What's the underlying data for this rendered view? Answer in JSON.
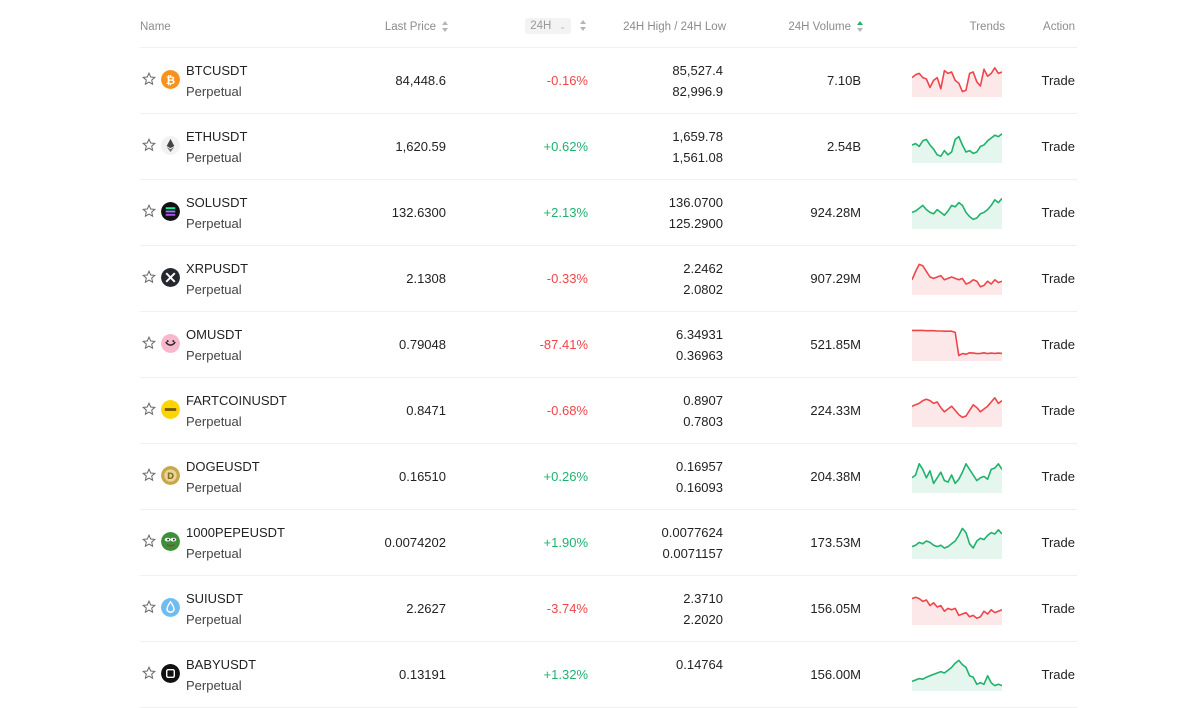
{
  "header": {
    "name": "Name",
    "last_price": "Last Price",
    "change": "24H",
    "high_low": "24H High / 24H Low",
    "volume": "24H Volume",
    "trends": "Trends",
    "action": "Action"
  },
  "colors": {
    "up": "#20b26c",
    "down": "#ef454a"
  },
  "rows": [
    {
      "symbol": "BTCUSDT",
      "type": "Perpetual",
      "price": "84,448.6",
      "change": "-0.16%",
      "direction": "down",
      "high": "85,527.4",
      "low": "82,996.9",
      "volume": "7.10B",
      "action": "Trade",
      "icon": "btc-icon",
      "trend": [
        0.45,
        0.35,
        0.3,
        0.45,
        0.5,
        0.8,
        0.55,
        0.45,
        0.85,
        0.2,
        0.3,
        0.25,
        0.55,
        0.65,
        0.95,
        0.9,
        0.3,
        0.25,
        0.6,
        0.75,
        0.15,
        0.4,
        0.3,
        0.1,
        0.3,
        0.25
      ]
    },
    {
      "symbol": "ETHUSDT",
      "type": "Perpetual",
      "price": "1,620.59",
      "change": "+0.62%",
      "direction": "up",
      "high": "1,659.78",
      "low": "1,561.08",
      "volume": "2.54B",
      "action": "Trade",
      "icon": "eth-icon",
      "trend": [
        0.5,
        0.45,
        0.55,
        0.35,
        0.3,
        0.5,
        0.65,
        0.85,
        0.9,
        0.7,
        0.85,
        0.75,
        0.3,
        0.2,
        0.5,
        0.75,
        0.7,
        0.8,
        0.75,
        0.55,
        0.5,
        0.35,
        0.25,
        0.15,
        0.2,
        0.1
      ]
    },
    {
      "symbol": "SOLUSDT",
      "type": "Perpetual",
      "price": "132.6300",
      "change": "+2.13%",
      "direction": "up",
      "high": "136.0700",
      "low": "125.2900",
      "volume": "924.28M",
      "action": "Trade",
      "icon": "sol-icon",
      "trend": [
        0.55,
        0.5,
        0.4,
        0.3,
        0.45,
        0.55,
        0.6,
        0.45,
        0.55,
        0.65,
        0.5,
        0.3,
        0.35,
        0.2,
        0.3,
        0.55,
        0.7,
        0.8,
        0.75,
        0.6,
        0.55,
        0.45,
        0.3,
        0.1,
        0.2,
        0.05
      ]
    },
    {
      "symbol": "XRPUSDT",
      "type": "Perpetual",
      "price": "2.1308",
      "change": "-0.33%",
      "direction": "down",
      "high": "2.2462",
      "low": "2.0802",
      "volume": "907.29M",
      "action": "Trade",
      "icon": "xrp-icon",
      "trend": [
        0.6,
        0.3,
        0.05,
        0.1,
        0.3,
        0.5,
        0.55,
        0.5,
        0.45,
        0.6,
        0.55,
        0.5,
        0.55,
        0.6,
        0.55,
        0.75,
        0.7,
        0.6,
        0.65,
        0.85,
        0.8,
        0.65,
        0.75,
        0.6,
        0.7,
        0.65
      ]
    },
    {
      "symbol": "OMUSDT",
      "type": "Perpetual",
      "price": "0.79048",
      "change": "-87.41%",
      "direction": "down",
      "high": "6.34931",
      "low": "0.36963",
      "volume": "521.85M",
      "action": "Trade",
      "icon": "om-icon",
      "trend": [
        0.05,
        0.05,
        0.05,
        0.05,
        0.06,
        0.06,
        0.06,
        0.07,
        0.07,
        0.08,
        0.08,
        0.08,
        0.12,
        0.95,
        0.88,
        0.9,
        0.85,
        0.86,
        0.88,
        0.87,
        0.85,
        0.88,
        0.86,
        0.87,
        0.86,
        0.87
      ]
    },
    {
      "symbol": "FARTCOINUSDT",
      "type": "Perpetual",
      "price": "0.8471",
      "change": "-0.68%",
      "direction": "down",
      "high": "0.8907",
      "low": "0.7803",
      "volume": "224.33M",
      "action": "Trade",
      "icon": "fartcoin-icon",
      "trend": [
        0.4,
        0.35,
        0.3,
        0.2,
        0.15,
        0.2,
        0.3,
        0.25,
        0.45,
        0.6,
        0.5,
        0.4,
        0.55,
        0.7,
        0.8,
        0.75,
        0.55,
        0.35,
        0.45,
        0.6,
        0.5,
        0.4,
        0.25,
        0.1,
        0.3,
        0.2
      ]
    },
    {
      "symbol": "DOGEUSDT",
      "type": "Perpetual",
      "price": "0.16510",
      "change": "+0.26%",
      "direction": "up",
      "high": "0.16957",
      "low": "0.16093",
      "volume": "204.38M",
      "action": "Trade",
      "icon": "doge-icon",
      "trend": [
        0.6,
        0.5,
        0.1,
        0.3,
        0.6,
        0.35,
        0.8,
        0.6,
        0.4,
        0.7,
        0.75,
        0.5,
        0.8,
        0.65,
        0.4,
        0.1,
        0.3,
        0.5,
        0.7,
        0.6,
        0.55,
        0.65,
        0.3,
        0.25,
        0.1,
        0.3
      ]
    },
    {
      "symbol": "1000PEPEUSDT",
      "type": "Perpetual",
      "price": "0.0074202",
      "change": "+1.90%",
      "direction": "up",
      "high": "0.0077624",
      "low": "0.0071157",
      "volume": "173.53M",
      "action": "Trade",
      "icon": "pepe-icon",
      "trend": [
        0.7,
        0.65,
        0.55,
        0.6,
        0.5,
        0.55,
        0.65,
        0.7,
        0.65,
        0.75,
        0.7,
        0.6,
        0.5,
        0.3,
        0.05,
        0.2,
        0.6,
        0.75,
        0.5,
        0.4,
        0.45,
        0.3,
        0.2,
        0.25,
        0.1,
        0.25
      ]
    },
    {
      "symbol": "SUIUSDT",
      "type": "Perpetual",
      "price": "2.2627",
      "change": "-3.74%",
      "direction": "down",
      "high": "2.3710",
      "low": "2.2020",
      "volume": "156.05M",
      "action": "Trade",
      "icon": "sui-icon",
      "trend": [
        0.2,
        0.15,
        0.2,
        0.3,
        0.25,
        0.45,
        0.35,
        0.5,
        0.45,
        0.65,
        0.55,
        0.6,
        0.55,
        0.8,
        0.75,
        0.7,
        0.85,
        0.8,
        0.9,
        0.85,
        0.65,
        0.75,
        0.6,
        0.7,
        0.65,
        0.6
      ]
    },
    {
      "symbol": "BABYUSDT",
      "type": "Perpetual",
      "price": "0.13191",
      "change": "+1.32%",
      "direction": "up",
      "high": "0.14764",
      "low": "",
      "volume": "156.00M",
      "action": "Trade",
      "icon": "baby-icon",
      "trend": [
        0.8,
        0.75,
        0.7,
        0.72,
        0.65,
        0.6,
        0.55,
        0.5,
        0.45,
        0.5,
        0.4,
        0.3,
        0.15,
        0.05,
        0.2,
        0.3,
        0.6,
        0.65,
        0.9,
        0.85,
        0.9,
        0.6,
        0.85,
        0.95,
        0.9,
        0.95
      ]
    }
  ]
}
